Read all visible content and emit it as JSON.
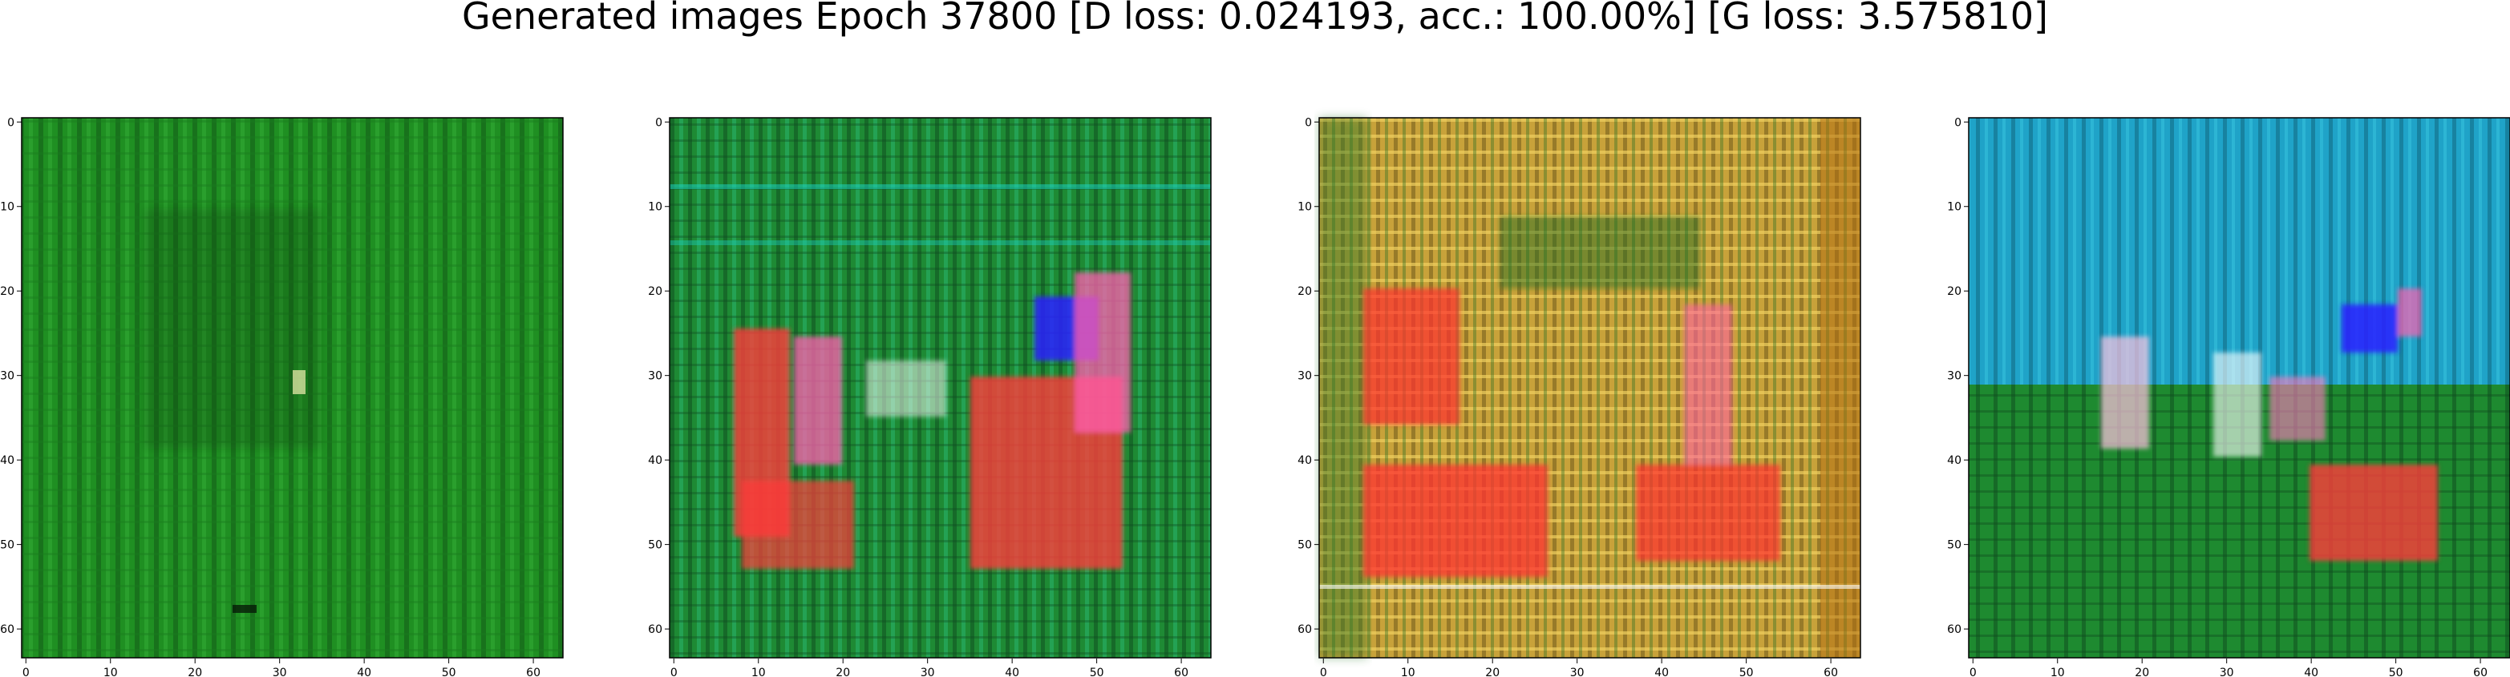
{
  "title": "Generated images Epoch 37800 [D loss: 0.024193, acc.: 100.00%] [G loss: 3.575810]",
  "panels": [
    {
      "name": "generated-image-1",
      "colors": {
        "base": "#1f8f22",
        "dark": "#0f4a14",
        "light": "#39b33a"
      },
      "x_ticks": [
        "0",
        "10",
        "20",
        "30",
        "40",
        "50",
        "60"
      ],
      "y_ticks": [
        "0",
        "10",
        "20",
        "30",
        "40",
        "50",
        "60"
      ]
    },
    {
      "name": "generated-image-2",
      "colors": {
        "base": "#1e8a34",
        "dark": "#0e4a1e",
        "light": "#2dbf7a",
        "accent1": "#ff3b3b",
        "accent2": "#ff5fb0",
        "accent3": "#2a1fff"
      },
      "x_ticks": [
        "0",
        "10",
        "20",
        "30",
        "40",
        "50",
        "60"
      ],
      "y_ticks": [
        "0",
        "10",
        "20",
        "30",
        "40",
        "50",
        "60"
      ]
    },
    {
      "name": "generated-image-3",
      "colors": {
        "base": "#c8a23a",
        "dark": "#5a4a14",
        "light": "#f0d060",
        "accent1": "#ff3030",
        "accent2": "#ff60a0",
        "accent3": "#1a6a20"
      },
      "x_ticks": [
        "0",
        "10",
        "20",
        "30",
        "40",
        "50",
        "60"
      ],
      "y_ticks": [
        "0",
        "10",
        "20",
        "30",
        "40",
        "50",
        "60"
      ]
    },
    {
      "name": "generated-image-4",
      "colors": {
        "base": "#1fa3c8",
        "dark": "#0e5a6e",
        "light": "#3ac8e0",
        "accent1": "#ff3b3b",
        "accent2": "#ff7ac0",
        "accent3": "#2a1fff",
        "ground": "#1e8a30"
      },
      "x_ticks": [
        "0",
        "10",
        "20",
        "30",
        "40",
        "50",
        "60"
      ],
      "y_ticks": [
        "0",
        "10",
        "20",
        "30",
        "40",
        "50",
        "60"
      ]
    }
  ]
}
